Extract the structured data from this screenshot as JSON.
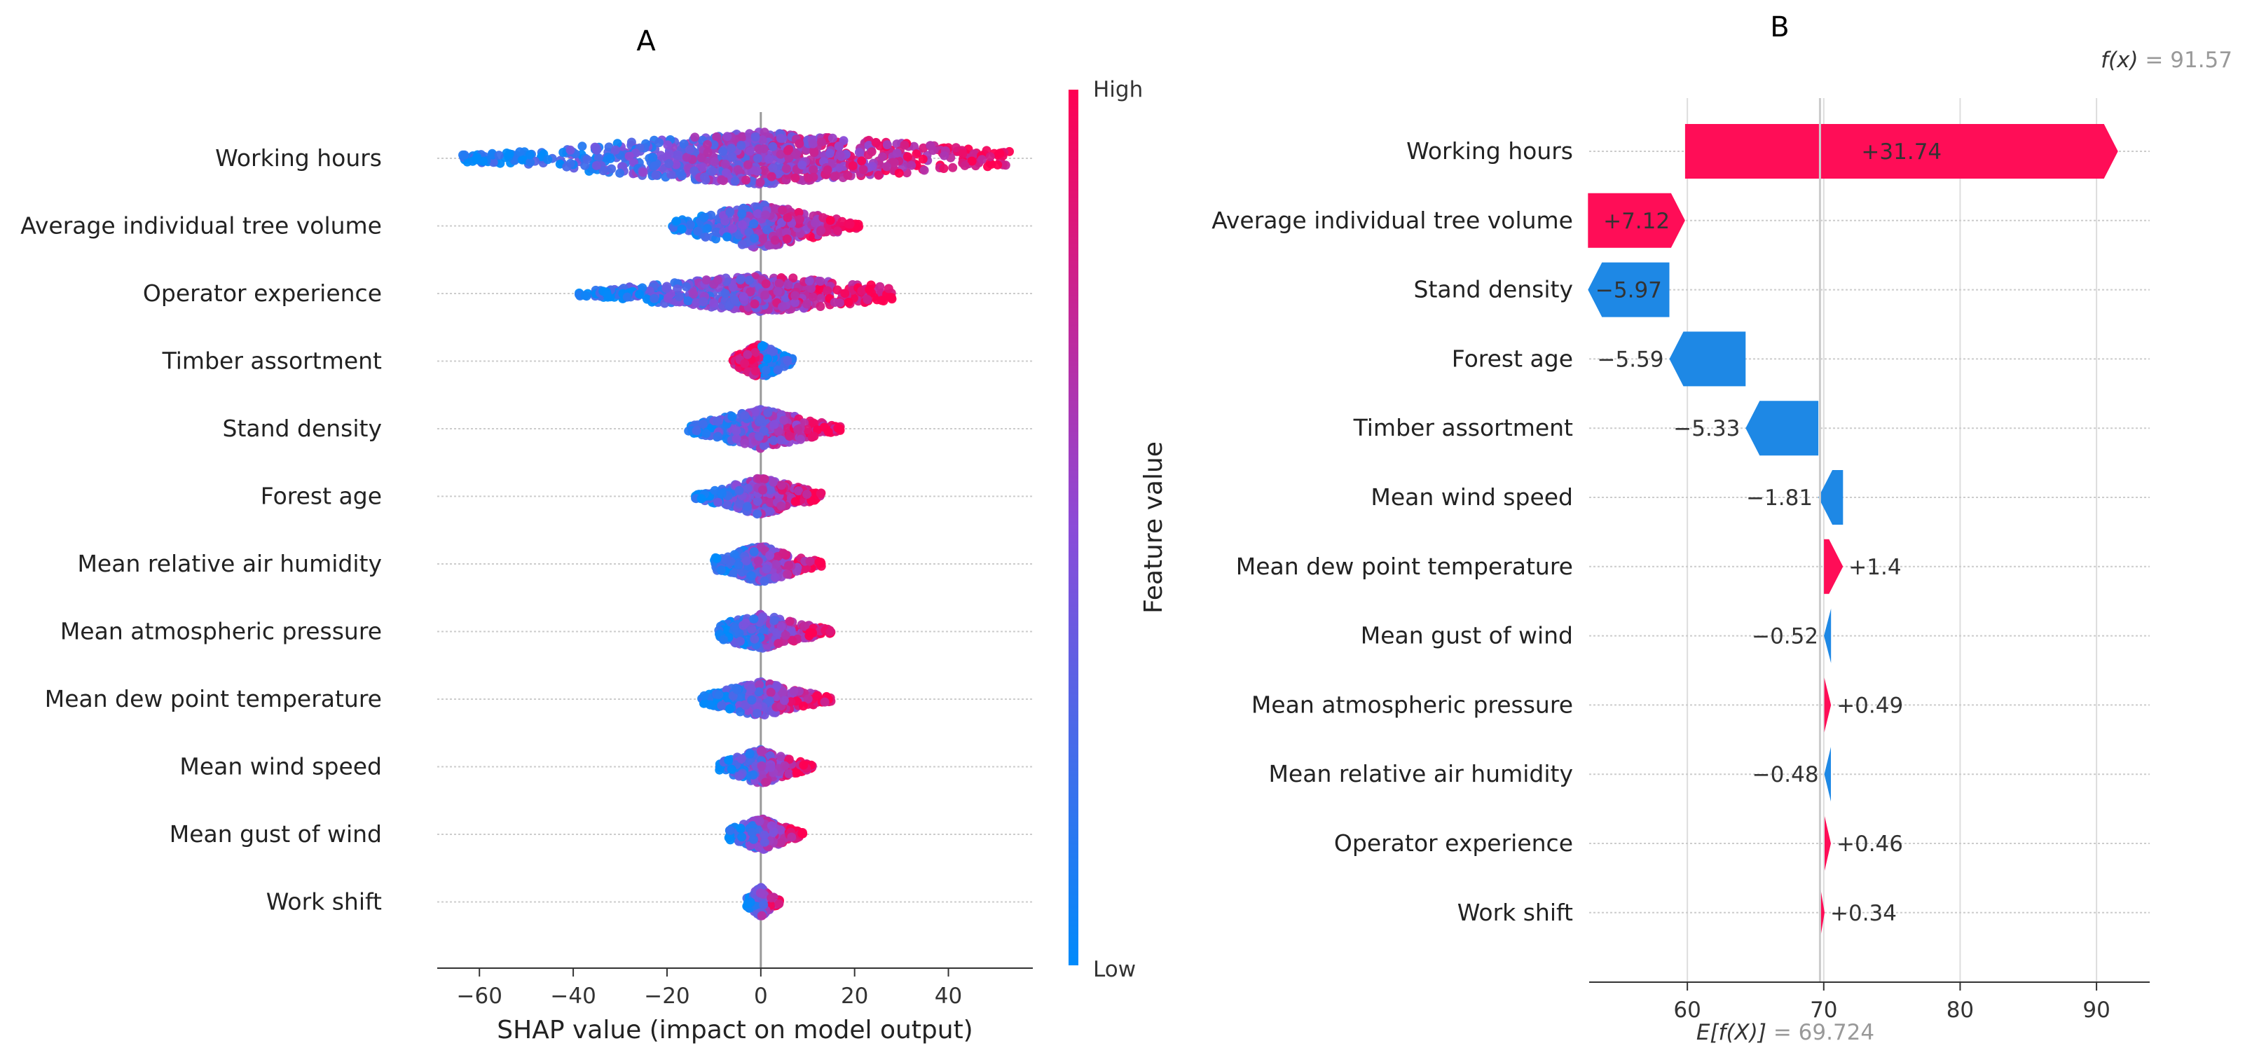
{
  "chart_data": [
    {
      "type": "scatter",
      "subtype": "shap-beeswarm",
      "title": "A",
      "xlabel": "SHAP value (impact on model output)",
      "xlim": [
        -69,
        58
      ],
      "xticks": [
        -60,
        -40,
        -20,
        0,
        20,
        40
      ],
      "features": [
        {
          "name": "Working hours",
          "min": -64,
          "max": 53,
          "width": 1.0
        },
        {
          "name": "Average individual tree volume",
          "min": -19,
          "max": 21,
          "width": 0.85
        },
        {
          "name": "Operator experience",
          "min": -39,
          "max": 28,
          "width": 0.7
        },
        {
          "name": "Timber assortment",
          "min": -6,
          "max": 7,
          "width": 0.65
        },
        {
          "name": "Stand density",
          "min": -16,
          "max": 17,
          "width": 0.75
        },
        {
          "name": "Forest age",
          "min": -14,
          "max": 13,
          "width": 0.7
        },
        {
          "name": "Mean relative air humidity",
          "min": -10,
          "max": 13,
          "width": 0.7
        },
        {
          "name": "Mean atmospheric pressure",
          "min": -9,
          "max": 15,
          "width": 0.65
        },
        {
          "name": "Mean dew point temperature",
          "min": -13,
          "max": 15,
          "width": 0.65
        },
        {
          "name": "Mean wind speed",
          "min": -9,
          "max": 11,
          "width": 0.65
        },
        {
          "name": "Mean gust of wind",
          "min": -7,
          "max": 9,
          "width": 0.6
        },
        {
          "name": "Work shift",
          "min": -3,
          "max": 4,
          "width": 0.55
        }
      ],
      "colorbar": {
        "label": "Feature value",
        "high": "High",
        "low": "Low",
        "high_color": "#ff0052",
        "low_color": "#008bfb"
      }
    },
    {
      "type": "bar",
      "subtype": "shap-waterfall",
      "title": "B",
      "fx_label": "f(x)",
      "fx_value": "91.57",
      "base_label": "E[f(X)]",
      "base_value": 69.724,
      "base_text": "69.724",
      "xlim": [
        52.8,
        93.9
      ],
      "xticks": [
        60,
        70,
        80,
        90
      ],
      "features": [
        {
          "name": "Working hours",
          "value": 31.74,
          "text": "+31.74"
        },
        {
          "name": "Average individual tree volume",
          "value": 7.12,
          "text": "+7.12"
        },
        {
          "name": "Stand density",
          "value": -5.97,
          "text": "−5.97"
        },
        {
          "name": "Forest age",
          "value": -5.59,
          "text": "−5.59"
        },
        {
          "name": "Timber assortment",
          "value": -5.33,
          "text": "−5.33"
        },
        {
          "name": "Mean wind speed",
          "value": -1.81,
          "text": "−1.81"
        },
        {
          "name": "Mean dew point temperature",
          "value": 1.4,
          "text": "+1.4"
        },
        {
          "name": "Mean gust of wind",
          "value": -0.52,
          "text": "−0.52"
        },
        {
          "name": "Mean atmospheric pressure",
          "value": 0.49,
          "text": "+0.49"
        },
        {
          "name": "Mean relative air humidity",
          "value": -0.48,
          "text": "−0.48"
        },
        {
          "name": "Operator experience",
          "value": 0.46,
          "text": "+0.46"
        },
        {
          "name": "Work shift",
          "value": 0.34,
          "text": "+0.34"
        }
      ],
      "colors": {
        "positive": "#ff0d57",
        "negative": "#1e88e5"
      }
    }
  ]
}
